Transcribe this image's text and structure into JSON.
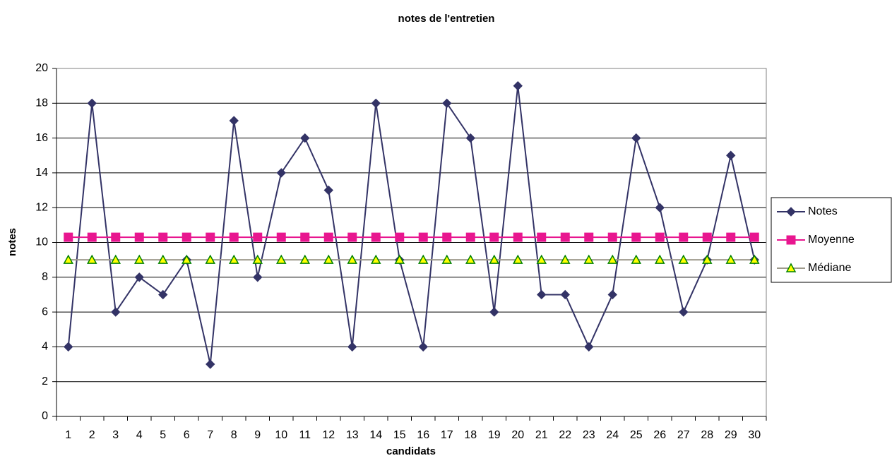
{
  "chart_data": {
    "type": "line",
    "title": "notes de l'entretien",
    "x_label": "candidats",
    "y_label": "notes",
    "categories": [
      "1",
      "2",
      "3",
      "4",
      "5",
      "6",
      "7",
      "8",
      "9",
      "10",
      "11",
      "12",
      "13",
      "14",
      "15",
      "16",
      "17",
      "18",
      "19",
      "20",
      "21",
      "22",
      "23",
      "24",
      "25",
      "26",
      "27",
      "28",
      "29",
      "30"
    ],
    "series": [
      {
        "name": "Notes",
        "color": "#333366",
        "marker": "diamond",
        "marker_fill": "#333366",
        "values": [
          4,
          18,
          6,
          8,
          7,
          9,
          3,
          17,
          8,
          14,
          16,
          13,
          4,
          18,
          9,
          4,
          18,
          16,
          6,
          19,
          7,
          7,
          4,
          7,
          16,
          12,
          6,
          9,
          15,
          9
        ]
      },
      {
        "name": "Moyenne",
        "color": "#e8168f",
        "marker": "square",
        "marker_fill": "#e8168f",
        "values": [
          10.3,
          10.3,
          10.3,
          10.3,
          10.3,
          10.3,
          10.3,
          10.3,
          10.3,
          10.3,
          10.3,
          10.3,
          10.3,
          10.3,
          10.3,
          10.3,
          10.3,
          10.3,
          10.3,
          10.3,
          10.3,
          10.3,
          10.3,
          10.3,
          10.3,
          10.3,
          10.3,
          10.3,
          10.3,
          10.3
        ]
      },
      {
        "name": "Médiane",
        "color": "#9e9a8c",
        "marker": "triangle",
        "marker_fill": "#ffff00",
        "marker_stroke": "#008000",
        "values": [
          9,
          9,
          9,
          9,
          9,
          9,
          9,
          9,
          9,
          9,
          9,
          9,
          9,
          9,
          9,
          9,
          9,
          9,
          9,
          9,
          9,
          9,
          9,
          9,
          9,
          9,
          9,
          9,
          9,
          9
        ]
      }
    ],
    "ylim": [
      0,
      20
    ],
    "yticks": [
      0,
      2,
      4,
      6,
      8,
      10,
      12,
      14,
      16,
      18,
      20
    ],
    "grid": true,
    "legend": "right"
  }
}
